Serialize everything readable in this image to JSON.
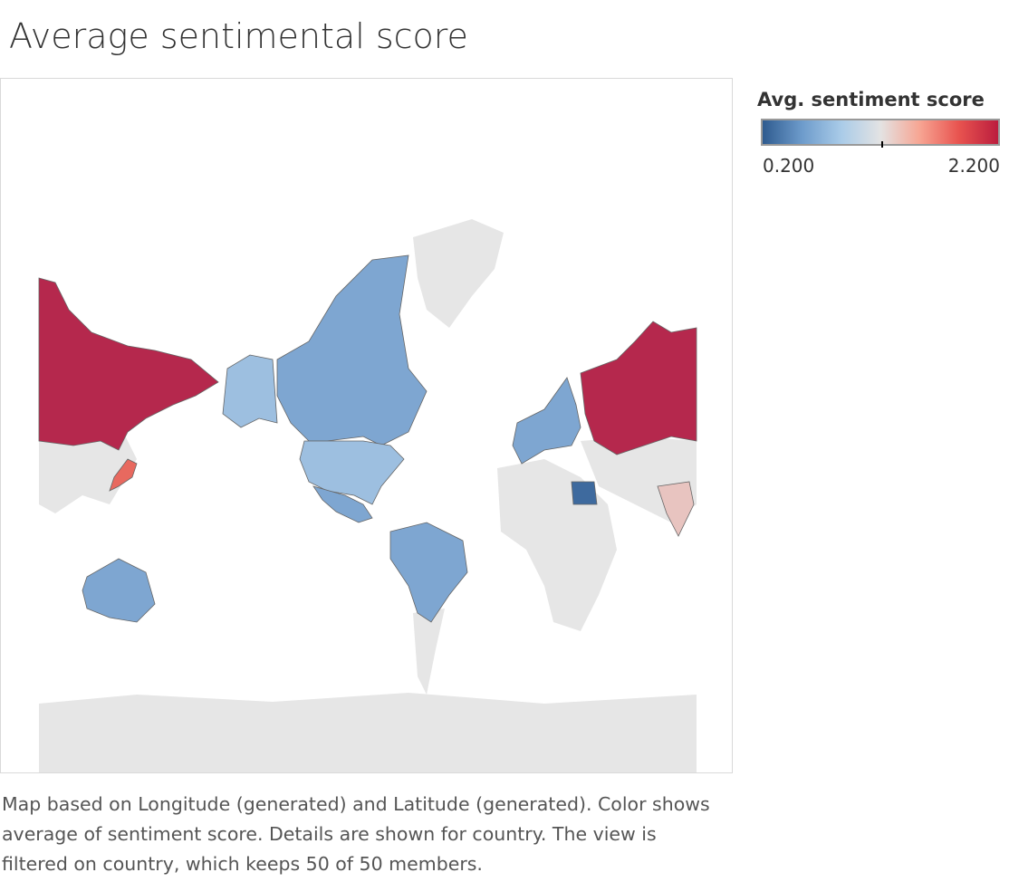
{
  "title": "Average sentimental score",
  "legend": {
    "title": "Avg. sentiment score",
    "min_label": "0.200",
    "max_label": "2.200",
    "min": 0.2,
    "max": 2.2,
    "gradient_colors": [
      "#2f5b8f",
      "#6d9bcb",
      "#a9cbe8",
      "#e3e3e3",
      "#f7a593",
      "#e8534f",
      "#bb1d3e"
    ]
  },
  "caption": "Map based on Longitude (generated) and Latitude (generated).  Color shows average of sentiment score.  Details are shown for country. The view is filtered on country, which keeps 50 of 50 members.",
  "colors": {
    "land_background": "#e6e6e6",
    "low": "#2f5b8f",
    "high": "#b5284d"
  },
  "regions": [
    {
      "name": "russia-east",
      "color": "#b5284d"
    },
    {
      "name": "russia-west",
      "color": "#b5284d"
    },
    {
      "name": "alaska",
      "color": "#9dbfe0"
    },
    {
      "name": "canada",
      "color": "#7ea6d1"
    },
    {
      "name": "greenland",
      "color": "#e6e6e6"
    },
    {
      "name": "usa",
      "color": "#9dbfe0"
    },
    {
      "name": "mexico",
      "color": "#7ea6d1"
    },
    {
      "name": "japan",
      "color": "#e8695f"
    },
    {
      "name": "australia",
      "color": "#7ea6d1"
    },
    {
      "name": "south-america",
      "color": "#7ea6d1"
    },
    {
      "name": "europe",
      "color": "#7ea6d1"
    },
    {
      "name": "india",
      "color": "#e8c4c0"
    },
    {
      "name": "egypt",
      "color": "#3e6a9e"
    },
    {
      "name": "africa",
      "color": "#e6e6e6"
    }
  ]
}
